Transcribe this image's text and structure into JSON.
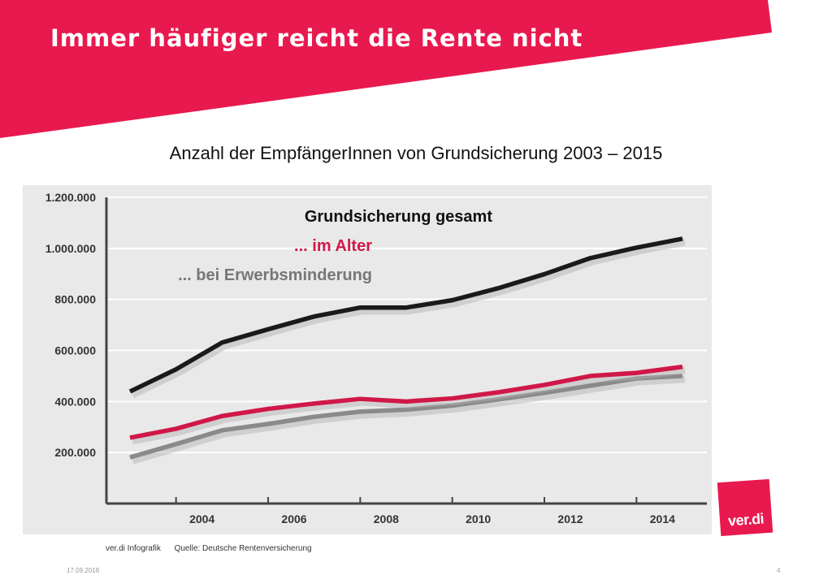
{
  "header": {
    "title": "Immer häufiger reicht die Rente nicht",
    "brand_color": "#e8194f"
  },
  "subtitle": "Anzahl der EmpfängerInnen von Grundsicherung 2003 – 2015",
  "chart_data": {
    "type": "line",
    "title": "Anzahl der EmpfängerInnen von Grundsicherung 2003 – 2015",
    "xlabel": "",
    "ylabel": "",
    "xlim": [
      2003,
      2015
    ],
    "ylim": [
      0,
      1200000
    ],
    "x": [
      2003,
      2004,
      2005,
      2006,
      2007,
      2008,
      2009,
      2010,
      2011,
      2012,
      2013,
      2014,
      2015
    ],
    "x_ticks": [
      "2004",
      "2006",
      "2008",
      "2010",
      "2012",
      "2014"
    ],
    "y_ticks": [
      "200.000",
      "400.000",
      "600.000",
      "800.000",
      "1.000.000",
      "1.200.000"
    ],
    "grid": true,
    "legend_position": "top-left",
    "series": [
      {
        "name": "Grundsicherung gesamt",
        "color": "#1a1a1a",
        "values": [
          439000,
          526000,
          631000,
          683000,
          733000,
          768000,
          768000,
          797000,
          844000,
          899000,
          962000,
          1003000,
          1038000
        ]
      },
      {
        "name": "... im Alter",
        "color": "#d01848",
        "values": [
          258000,
          293000,
          343000,
          371000,
          392000,
          410000,
          400000,
          412000,
          436000,
          465000,
          500000,
          512000,
          536000
        ]
      },
      {
        "name": "... bei Erwerbsminderung",
        "color": "#8a8a8a",
        "values": [
          181000,
          233000,
          287000,
          312000,
          340000,
          360000,
          368000,
          384000,
          408000,
          434000,
          462000,
          490000,
          500000
        ]
      }
    ]
  },
  "footer": {
    "credit": "ver.di Infografik",
    "source": "Quelle: Deutsche Rentenversicherung"
  },
  "date": "17.09.2018",
  "page_number": "4",
  "logo": {
    "text": "ver.di"
  }
}
